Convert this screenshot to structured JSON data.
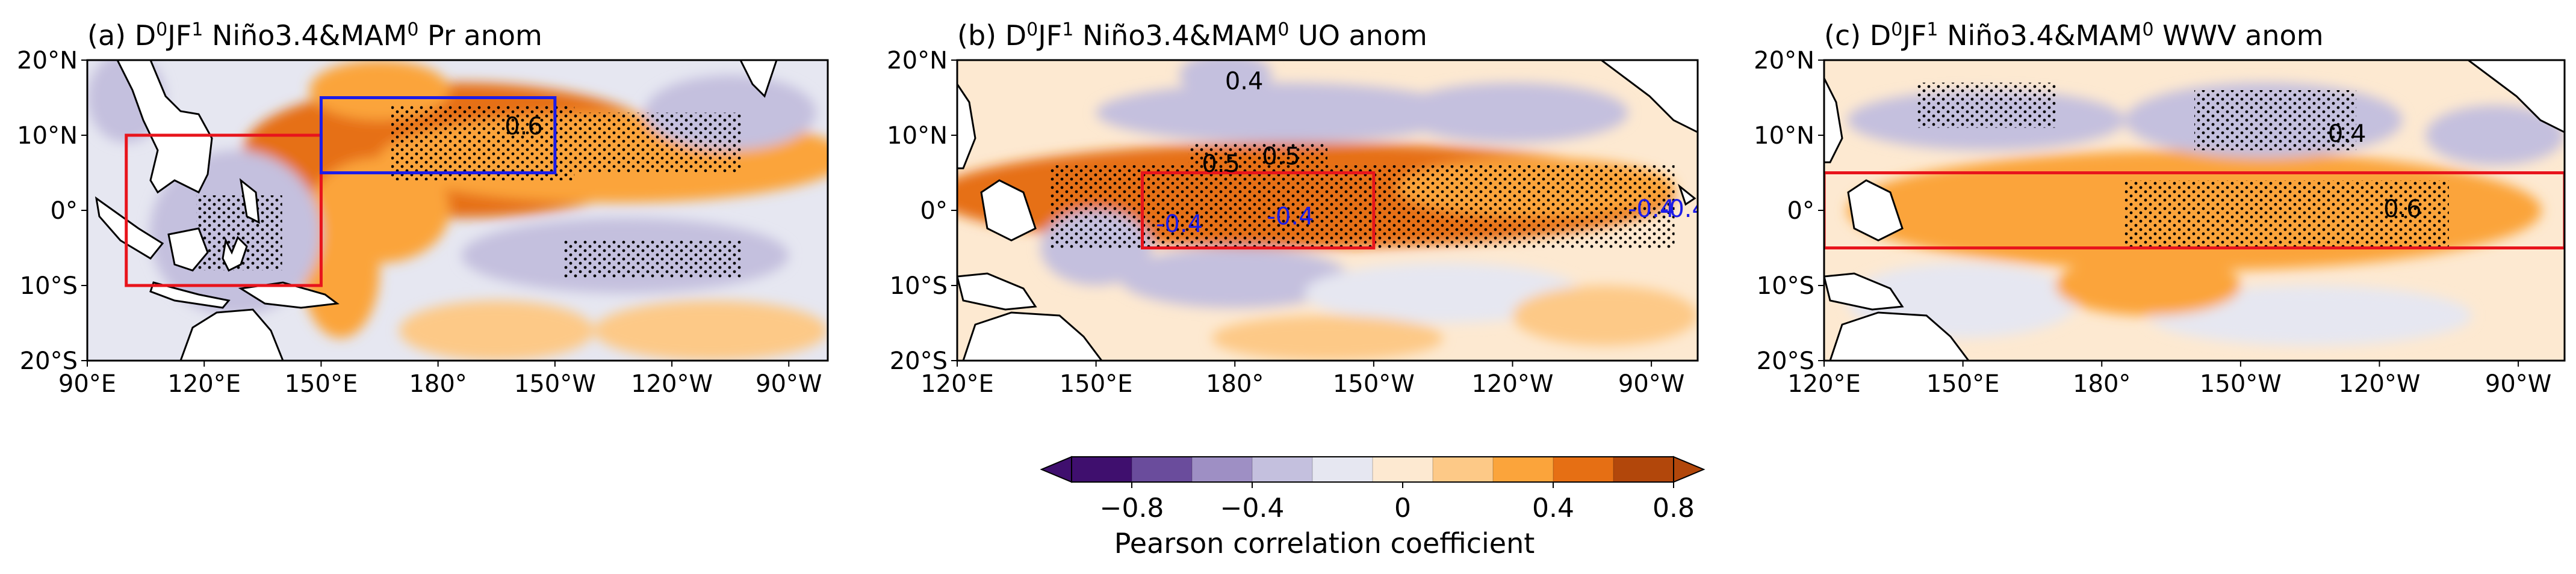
{
  "figure": {
    "colorbar": {
      "label": "Pearson correlation coefficient",
      "levels": [
        -1.0,
        -0.8,
        -0.6,
        -0.4,
        -0.2,
        -0.1,
        0.1,
        0.2,
        0.4,
        0.6,
        0.8,
        1.0
      ],
      "colors": [
        "#3f0f6e",
        "#6a4c9c",
        "#9e8fc4",
        "#c4c0de",
        "#e6e7f1",
        "#fde9d1",
        "#fdc987",
        "#fba43b",
        "#e66f14",
        "#b2470b"
      ],
      "tick_values": [
        -0.8,
        -0.4,
        0,
        0.4,
        0.8
      ],
      "tick_labels": [
        "−0.8",
        "−0.4",
        "0",
        "0.4",
        "0.8"
      ]
    },
    "panels": [
      {
        "id": "a",
        "title_prefix": "(a) D",
        "title_sup1": "0",
        "title_mid": "JF",
        "title_sup2": "1",
        "title_nino": " Niño3.4&MAM",
        "title_sup3": "0",
        "title_suffix": " Pr anom",
        "lon_range": [
          90,
          280
        ],
        "lat_range": [
          -20,
          20
        ],
        "x_ticks": [
          {
            "lon": 90,
            "label": "90°E"
          },
          {
            "lon": 120,
            "label": "120°E"
          },
          {
            "lon": 150,
            "label": "150°E"
          },
          {
            "lon": 180,
            "label": "180°"
          },
          {
            "lon": 210,
            "label": "150°W"
          },
          {
            "lon": 240,
            "label": "120°W"
          },
          {
            "lon": 270,
            "label": "90°W"
          }
        ],
        "y_ticks": [
          {
            "lat": 20,
            "label": "20°N"
          },
          {
            "lat": 10,
            "label": "10°N"
          },
          {
            "lat": 0,
            "label": "0°"
          },
          {
            "lat": -10,
            "label": "10°S"
          },
          {
            "lat": -20,
            "label": "20°S"
          }
        ],
        "boxes": [
          {
            "lon": [
              100,
              150
            ],
            "lat": [
              -10,
              10
            ],
            "color": "#e8141c"
          },
          {
            "lon": [
              150,
              210
            ],
            "lat": [
              5,
              15
            ],
            "color": "#1c1ce8"
          }
        ],
        "contour_labels": [
          {
            "text": "0.6",
            "lon": 202,
            "lat": 11,
            "color": "#000000"
          }
        ],
        "anomalies": [
          {
            "lon": 185,
            "lat": 8,
            "rx": 55,
            "ry": 9,
            "v": 0.55
          },
          {
            "lon": 225,
            "lat": 7,
            "rx": 60,
            "ry": 6,
            "v": 0.35
          },
          {
            "lon": 165,
            "lat": 0,
            "rx": 18,
            "ry": 7,
            "v": 0.35
          },
          {
            "lon": 155,
            "lat": -8,
            "rx": 10,
            "ry": 9,
            "v": 0.3
          },
          {
            "lon": 165,
            "lat": 16,
            "rx": 18,
            "ry": 4,
            "v": 0.35
          },
          {
            "lon": 128,
            "lat": -3,
            "rx": 22,
            "ry": 11,
            "v": -0.35
          },
          {
            "lon": 228,
            "lat": -6,
            "rx": 42,
            "ry": 5,
            "v": -0.3
          },
          {
            "lon": 255,
            "lat": 13,
            "rx": 22,
            "ry": 5,
            "v": -0.25
          },
          {
            "lon": 100,
            "lat": 15,
            "rx": 10,
            "ry": 6,
            "v": -0.25
          },
          {
            "lon": 195,
            "lat": -16,
            "rx": 25,
            "ry": 4,
            "v": 0.15
          },
          {
            "lon": 250,
            "lat": -16,
            "rx": 30,
            "ry": 4,
            "v": 0.15
          }
        ],
        "stipple": [
          {
            "lon": [
              168,
              215
            ],
            "lat": [
              4,
              14
            ]
          },
          {
            "lon": [
              215,
              258
            ],
            "lat": [
              5,
              13
            ]
          },
          {
            "lon": [
              212,
              258
            ],
            "lat": [
              -9,
              -4
            ]
          },
          {
            "lon": [
              118,
              140
            ],
            "lat": [
              -8,
              2
            ]
          }
        ]
      },
      {
        "id": "b",
        "title_prefix": "(b) D",
        "title_sup1": "0",
        "title_mid": "JF",
        "title_sup2": "1",
        "title_nino": " Niño3.4&MAM",
        "title_sup3": "0",
        "title_suffix": " UO anom",
        "lon_range": [
          120,
          280
        ],
        "lat_range": [
          -20,
          20
        ],
        "x_ticks": [
          {
            "lon": 120,
            "label": "120°E"
          },
          {
            "lon": 150,
            "label": "150°E"
          },
          {
            "lon": 180,
            "label": "180°"
          },
          {
            "lon": 210,
            "label": "150°W"
          },
          {
            "lon": 240,
            "label": "120°W"
          },
          {
            "lon": 270,
            "label": "90°W"
          }
        ],
        "y_ticks": [
          {
            "lat": 20,
            "label": "20°N"
          },
          {
            "lat": 10,
            "label": "10°N"
          },
          {
            "lat": 0,
            "label": "0°"
          },
          {
            "lat": -10,
            "label": "10°S"
          },
          {
            "lat": -20,
            "label": "20°S"
          }
        ],
        "boxes": [
          {
            "lon": [
              160,
              210
            ],
            "lat": [
              -5,
              5
            ],
            "color": "#e8141c"
          }
        ],
        "contour_labels": [
          {
            "text": "0.4",
            "lon": 182,
            "lat": 17,
            "color": "#000000"
          },
          {
            "text": "0.5",
            "lon": 177,
            "lat": 6,
            "color": "#000000"
          },
          {
            "text": "0.5",
            "lon": 190,
            "lat": 7,
            "color": "#000000"
          },
          {
            "text": "-0.4",
            "lon": 168,
            "lat": -2,
            "color": "#1c1ce8"
          },
          {
            "text": "-0.4",
            "lon": 192,
            "lat": -1,
            "color": "#1c1ce8"
          },
          {
            "text": "-0.4",
            "lon": 270,
            "lat": 0,
            "color": "#1c1ce8"
          },
          {
            "text": "-0.4",
            "lon": 277,
            "lat": 0,
            "color": "#1c1ce8"
          }
        ],
        "anomalies": [
          {
            "lon": 195,
            "lat": 2,
            "rx": 80,
            "ry": 7,
            "v": 0.4
          },
          {
            "lon": 245,
            "lat": 3,
            "rx": 30,
            "ry": 4,
            "v": 0.3
          },
          {
            "lon": 190,
            "lat": 13,
            "rx": 40,
            "ry": 4,
            "v": -0.3
          },
          {
            "lon": 240,
            "lat": 13,
            "rx": 25,
            "ry": 4,
            "v": -0.25
          },
          {
            "lon": 180,
            "lat": -9,
            "rx": 25,
            "ry": 4,
            "v": -0.25
          },
          {
            "lon": 225,
            "lat": -11,
            "rx": 30,
            "ry": 4,
            "v": -0.2
          },
          {
            "lon": 178,
            "lat": 18,
            "rx": 10,
            "ry": 3,
            "v": -0.4
          },
          {
            "lon": 150,
            "lat": -5,
            "rx": 12,
            "ry": 5,
            "v": -0.3
          },
          {
            "lon": 260,
            "lat": -14,
            "rx": 20,
            "ry": 4,
            "v": 0.15
          },
          {
            "lon": 200,
            "lat": -17,
            "rx": 25,
            "ry": 3,
            "v": 0.15
          }
        ],
        "stipple": [
          {
            "lon": [
              140,
              275
            ],
            "lat": [
              -5,
              6
            ]
          },
          {
            "lon": [
              170,
              200
            ],
            "lat": [
              6,
              9
            ]
          }
        ]
      },
      {
        "id": "c",
        "title_prefix": "(c) D",
        "title_sup1": "0",
        "title_mid": "JF",
        "title_sup2": "1",
        "title_nino": " Niño3.4&MAM",
        "title_sup3": "0",
        "title_suffix": " WWV anom",
        "lon_range": [
          120,
          280
        ],
        "lat_range": [
          -20,
          20
        ],
        "x_ticks": [
          {
            "lon": 120,
            "label": "120°E"
          },
          {
            "lon": 150,
            "label": "150°E"
          },
          {
            "lon": 180,
            "label": "180°"
          },
          {
            "lon": 210,
            "label": "150°W"
          },
          {
            "lon": 240,
            "label": "120°W"
          },
          {
            "lon": 270,
            "label": "90°W"
          }
        ],
        "y_ticks": [
          {
            "lat": 20,
            "label": "20°N"
          },
          {
            "lat": 10,
            "label": "10°N"
          },
          {
            "lat": 0,
            "label": "0°"
          },
          {
            "lat": -10,
            "label": "10°S"
          },
          {
            "lat": -20,
            "label": "20°S"
          }
        ],
        "boxes": [
          {
            "lon": [
              120,
              280
            ],
            "lat": [
              -5,
              5
            ],
            "color": "#e8141c"
          }
        ],
        "contour_labels": [
          {
            "text": "0.4",
            "lon": 233,
            "lat": 10,
            "color": "#000000"
          },
          {
            "text": "0.6",
            "lon": 245,
            "lat": 0,
            "color": "#000000"
          }
        ],
        "anomalies": [
          {
            "lon": 215,
            "lat": 0,
            "rx": 55,
            "ry": 5,
            "v": 0.55
          },
          {
            "lon": 200,
            "lat": 0,
            "rx": 75,
            "ry": 8,
            "v": 0.35
          },
          {
            "lon": 215,
            "lat": 12,
            "rx": 30,
            "ry": 5,
            "v": -0.35
          },
          {
            "lon": 155,
            "lat": 12,
            "rx": 30,
            "ry": 4,
            "v": -0.25
          },
          {
            "lon": 265,
            "lat": 10,
            "rx": 15,
            "ry": 4,
            "v": -0.25
          },
          {
            "lon": 225,
            "lat": -14,
            "rx": 35,
            "ry": 4,
            "v": -0.2
          },
          {
            "lon": 150,
            "lat": -12,
            "rx": 25,
            "ry": 5,
            "v": -0.2
          },
          {
            "lon": 190,
            "lat": -10,
            "rx": 20,
            "ry": 4,
            "v": 0.2
          }
        ],
        "stipple": [
          {
            "lon": [
              185,
              255
            ],
            "lat": [
              -5,
              4
            ]
          },
          {
            "lon": [
              200,
              235
            ],
            "lat": [
              8,
              16
            ]
          },
          {
            "lon": [
              140,
              170
            ],
            "lat": [
              11,
              17
            ]
          }
        ]
      }
    ]
  }
}
